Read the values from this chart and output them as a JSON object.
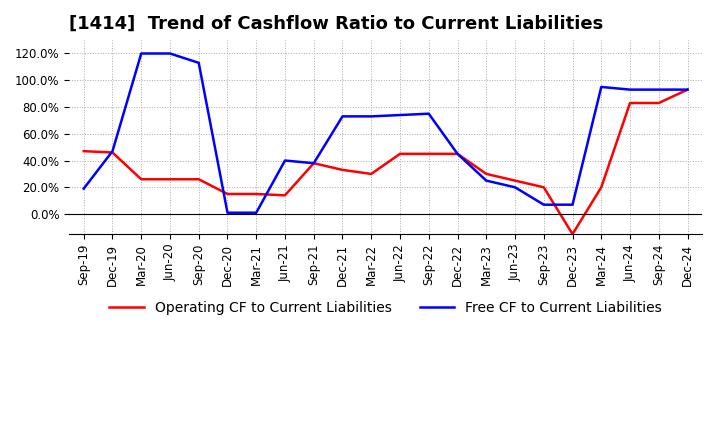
{
  "title": "[1414]  Trend of Cashflow Ratio to Current Liabilities",
  "ylim": [
    -15,
    130
  ],
  "yticks": [
    0,
    20,
    40,
    60,
    80,
    100,
    120
  ],
  "ytick_labels": [
    "0.0%",
    "20.0%",
    "40.0%",
    "60.0%",
    "80.0%",
    "100.0%",
    "120.0%"
  ],
  "x_labels": [
    "Sep-19",
    "Dec-19",
    "Mar-20",
    "Jun-20",
    "Sep-20",
    "Dec-20",
    "Mar-21",
    "Jun-21",
    "Sep-21",
    "Dec-21",
    "Mar-22",
    "Jun-22",
    "Sep-22",
    "Dec-22",
    "Mar-23",
    "Jun-23",
    "Sep-23",
    "Dec-23",
    "Mar-24",
    "Jun-24",
    "Sep-24",
    "Dec-24"
  ],
  "operating_cf": [
    47,
    46,
    26,
    26,
    26,
    15,
    15,
    14,
    38,
    33,
    30,
    45,
    45,
    45,
    30,
    25,
    20,
    -15,
    20,
    83,
    83,
    93
  ],
  "free_cf": [
    19,
    47,
    120,
    120,
    113,
    1,
    1,
    40,
    38,
    73,
    73,
    74,
    75,
    45,
    25,
    20,
    7,
    7,
    95,
    93,
    93,
    93
  ],
  "operating_color": "#ff0000",
  "free_color": "#0000ff",
  "line_width": 1.8,
  "legend_labels": [
    "Operating CF to Current Liabilities",
    "Free CF to Current Liabilities"
  ],
  "background_color": "#ffffff",
  "grid_color": "#aaaaaa",
  "title_fontsize": 13,
  "tick_fontsize": 8.5,
  "legend_fontsize": 10
}
